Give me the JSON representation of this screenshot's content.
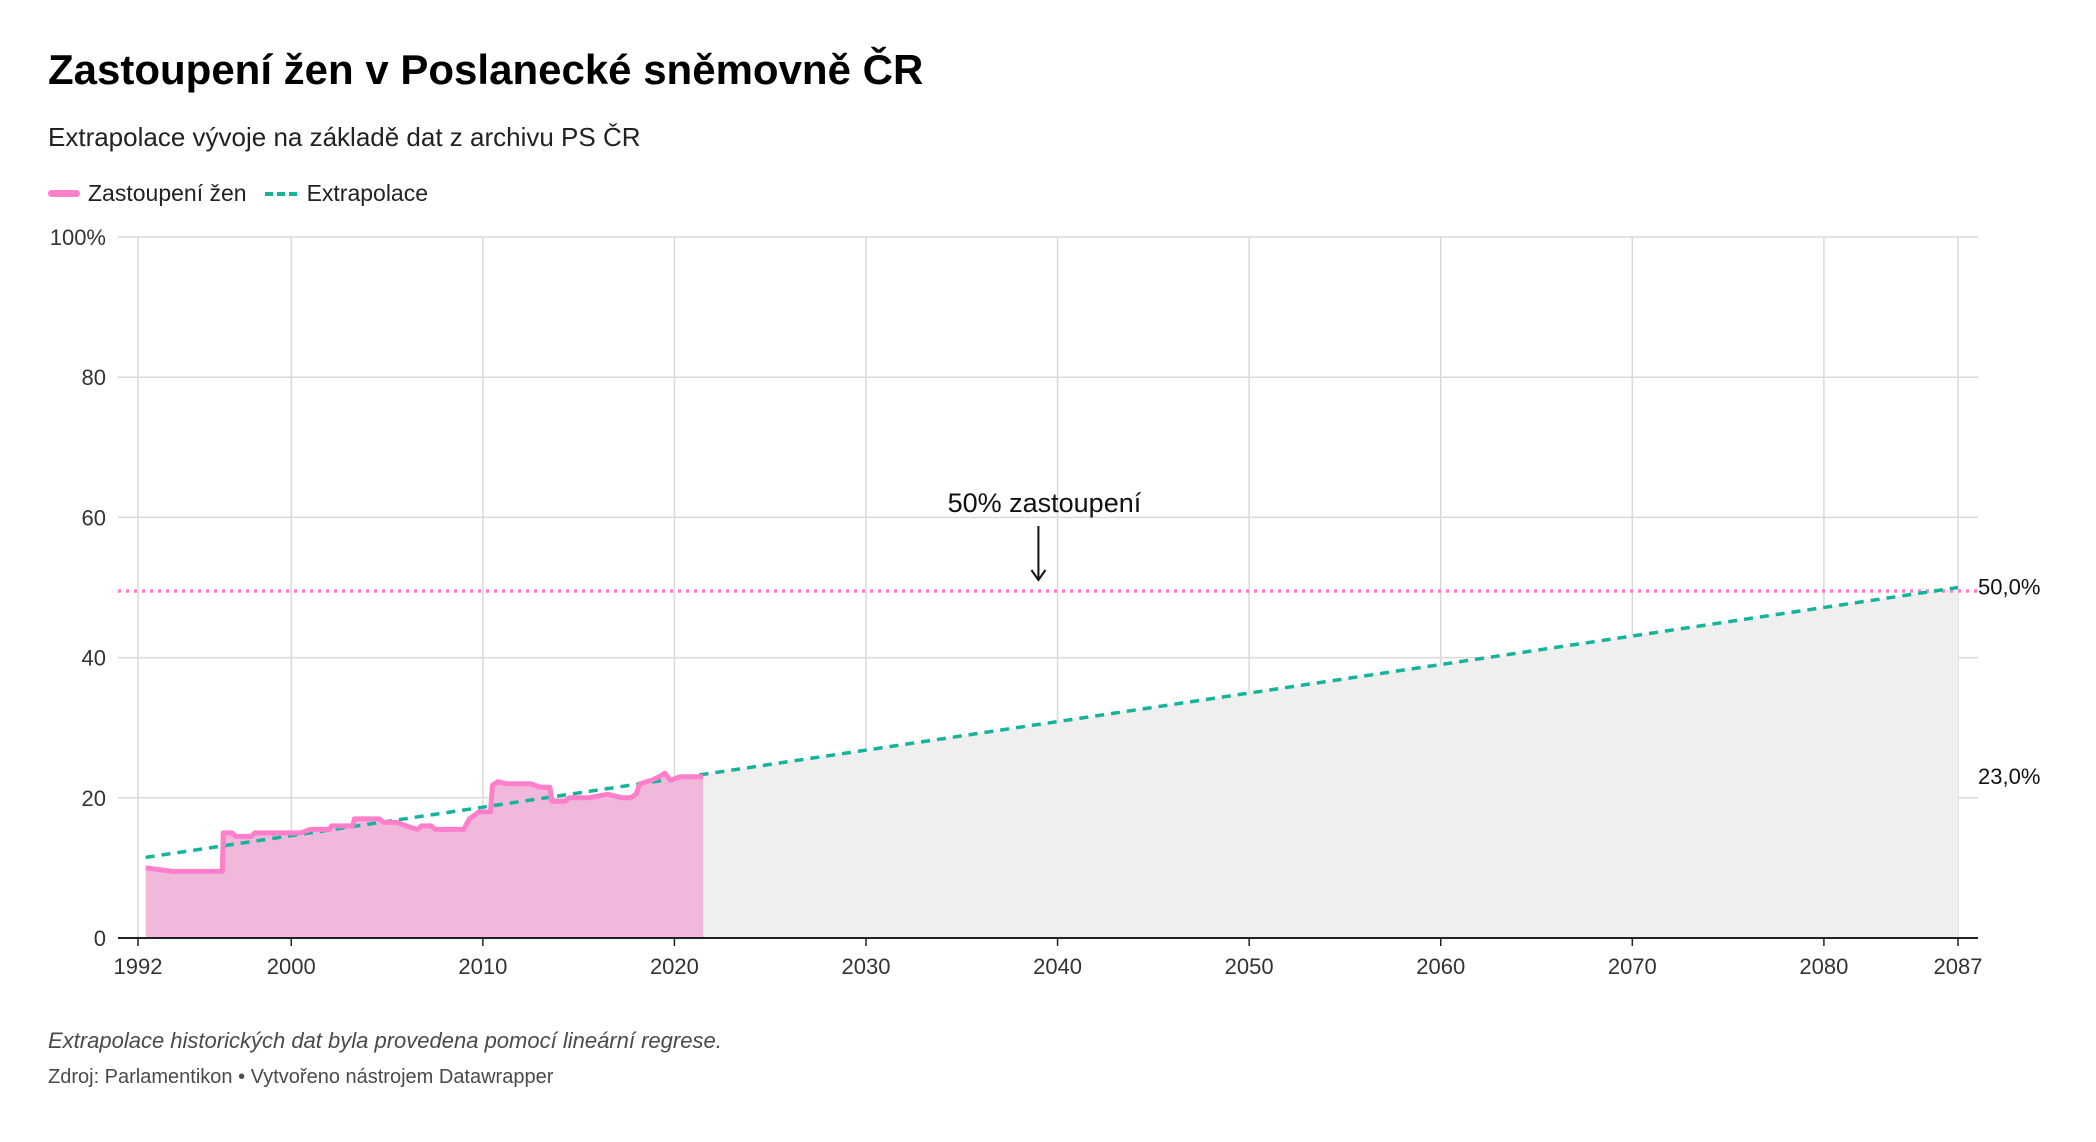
{
  "header": {
    "title": "Zastoupení žen v Poslanecké sněmovně ČR",
    "subtitle": "Extrapolace vývoje na základě dat z archivu PS ČR"
  },
  "legend": {
    "items": [
      {
        "label": "Zastoupení žen",
        "color": "#ff7fcb",
        "style": "solid"
      },
      {
        "label": "Extrapolace",
        "color": "#15b39a",
        "style": "dashed"
      }
    ]
  },
  "annotation": {
    "text": "50% zastoupení"
  },
  "end_labels": {
    "target": "50,0%",
    "current": "23,0%"
  },
  "footer": {
    "notes": "Extrapolace historických dat byla provedena pomocí lineární regrese.",
    "source": "Zdroj: Parlamentikon • Vytvořeno nástrojem Datawrapper"
  },
  "colors": {
    "women_line": "#ff7fcb",
    "women_area": "#f0b8da",
    "extrapolation": "#15b39a",
    "future_area": "#efefef",
    "threshold": "#ff7fcb",
    "grid": "#d9d9d9"
  },
  "chart_data": {
    "type": "line",
    "title": "Zastoupení žen v Poslanecké sněmovně ČR",
    "xlim": [
      1992,
      2087
    ],
    "ylim": [
      0,
      100
    ],
    "x_ticks": [
      "1992",
      "2000",
      "2010",
      "2020",
      "2030",
      "2040",
      "2050",
      "2060",
      "2070",
      "2080",
      "2087"
    ],
    "y_ticks": [
      "100%",
      "80",
      "60",
      "40",
      "20",
      "0"
    ],
    "grid": true,
    "legend_position": "top-left",
    "series": [
      {
        "name": "Zastoupení žen",
        "style": "solid",
        "points": [
          [
            1992.4,
            10.0
          ],
          [
            1993.0,
            9.8
          ],
          [
            1993.8,
            9.5
          ],
          [
            1994.8,
            9.5
          ],
          [
            1995.8,
            9.5
          ],
          [
            1996.4,
            9.5
          ],
          [
            1996.45,
            15.0
          ],
          [
            1996.9,
            15.0
          ],
          [
            1997.1,
            14.5
          ],
          [
            1997.9,
            14.5
          ],
          [
            1998.1,
            15.0
          ],
          [
            1999.5,
            15.0
          ],
          [
            2000.5,
            15.0
          ],
          [
            2001.0,
            15.5
          ],
          [
            2002.0,
            15.5
          ],
          [
            2002.1,
            16.0
          ],
          [
            2003.2,
            16.0
          ],
          [
            2003.3,
            17.0
          ],
          [
            2004.6,
            17.0
          ],
          [
            2004.8,
            16.5
          ],
          [
            2005.5,
            16.5
          ],
          [
            2006.2,
            15.8
          ],
          [
            2006.6,
            15.5
          ],
          [
            2006.8,
            16.0
          ],
          [
            2007.3,
            16.0
          ],
          [
            2007.5,
            15.5
          ],
          [
            2008.0,
            15.5
          ],
          [
            2009.0,
            15.5
          ],
          [
            2009.3,
            17.0
          ],
          [
            2009.8,
            18.0
          ],
          [
            2010.4,
            18.0
          ],
          [
            2010.5,
            21.8
          ],
          [
            2010.8,
            22.3
          ],
          [
            2011.2,
            22.0
          ],
          [
            2012.5,
            22.0
          ],
          [
            2013.0,
            21.5
          ],
          [
            2013.5,
            21.5
          ],
          [
            2013.6,
            19.5
          ],
          [
            2014.3,
            19.5
          ],
          [
            2014.5,
            20.0
          ],
          [
            2015.5,
            20.0
          ],
          [
            2016.5,
            20.5
          ],
          [
            2017.3,
            20.0
          ],
          [
            2017.7,
            20.0
          ],
          [
            2018.0,
            20.5
          ],
          [
            2018.2,
            22.0
          ],
          [
            2018.8,
            22.5
          ],
          [
            2019.2,
            23.0
          ],
          [
            2019.5,
            23.5
          ],
          [
            2019.8,
            22.5
          ],
          [
            2020.3,
            23.0
          ],
          [
            2021.0,
            23.0
          ],
          [
            2021.5,
            23.0
          ]
        ]
      },
      {
        "name": "Extrapolace",
        "style": "dashed",
        "points": [
          [
            1992.4,
            11.5
          ],
          [
            2087.0,
            50.0
          ]
        ]
      }
    ],
    "reference_lines": [
      {
        "y": 49.5,
        "style": "dotted",
        "label": "50% zastoupení"
      }
    ],
    "shaded_region": {
      "x_start": 2021.5,
      "x_end": 2087.0
    }
  }
}
